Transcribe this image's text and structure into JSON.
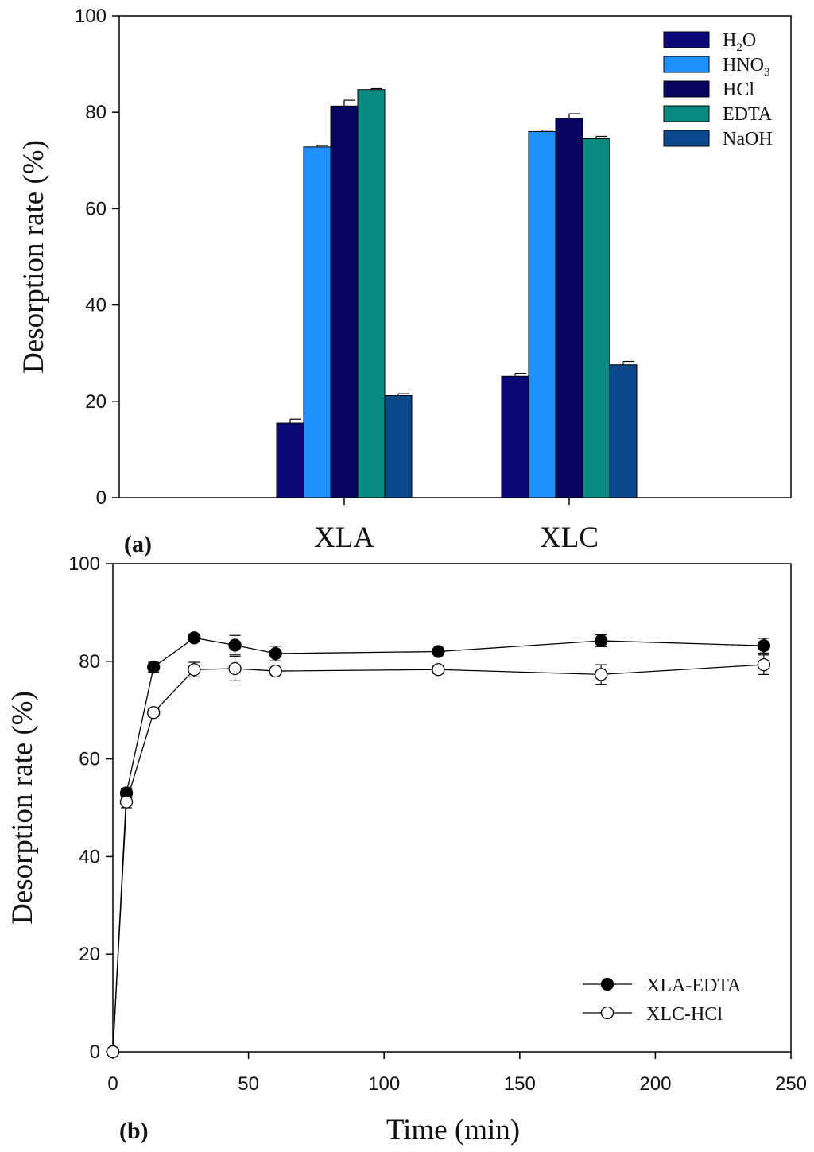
{
  "chart_data": [
    {
      "type": "bar",
      "panel_label": "(a)",
      "ylabel": "Desorption rate (%)",
      "xlabel": "",
      "ylim": [
        0,
        100
      ],
      "yticks": [
        "0",
        "20",
        "40",
        "60",
        "80",
        "100"
      ],
      "categories": [
        "XLA",
        "XLC"
      ],
      "series": [
        {
          "name": "H2O",
          "legend_main": "H",
          "legend_sub": "2",
          "legend_tail": "O",
          "color": "#0a0a7a",
          "values": [
            15.5,
            25.2
          ],
          "errors": [
            0.8,
            0.6
          ]
        },
        {
          "name": "HNO3",
          "legend_main": "HNO",
          "legend_sub": "3",
          "legend_tail": "",
          "color": "#1e90ff",
          "values": [
            72.8,
            76.0
          ],
          "errors": [
            0.3,
            0.3
          ]
        },
        {
          "name": "HCl",
          "legend_main": "HCl",
          "legend_sub": "",
          "legend_tail": "",
          "color": "#06065e",
          "values": [
            81.3,
            78.8
          ],
          "errors": [
            1.2,
            0.9
          ]
        },
        {
          "name": "EDTA",
          "legend_main": "EDTA",
          "legend_sub": "",
          "legend_tail": "",
          "color": "#0b8b80",
          "values": [
            84.7,
            74.5
          ],
          "errors": [
            0.2,
            0.5
          ]
        },
        {
          "name": "NaOH",
          "legend_main": "NaOH",
          "legend_sub": "",
          "legend_tail": "",
          "color": "#0a4a8c",
          "values": [
            21.2,
            27.6
          ],
          "errors": [
            0.4,
            0.7
          ]
        }
      ],
      "legend_position": "top-right"
    },
    {
      "type": "line",
      "panel_label": "(b)",
      "xlabel": "Time (min)",
      "ylabel": "Desorption rate (%)",
      "xlim": [
        0,
        250
      ],
      "ylim": [
        0,
        100
      ],
      "xticks": [
        "0",
        "50",
        "100",
        "150",
        "200",
        "250"
      ],
      "yticks": [
        "0",
        "20",
        "40",
        "60",
        "80",
        "100"
      ],
      "series": [
        {
          "name": "XLA-EDTA",
          "marker": "filled-circle",
          "x": [
            0,
            5,
            15,
            30,
            45,
            60,
            120,
            180,
            240
          ],
          "y": [
            0,
            53.0,
            78.8,
            84.8,
            83.3,
            81.6,
            82.0,
            84.2,
            83.2
          ],
          "errors": [
            0,
            1.0,
            1.0,
            0.8,
            2.0,
            1.5,
            0.5,
            1.2,
            1.5
          ]
        },
        {
          "name": "XLC-HCl",
          "marker": "open-circle",
          "x": [
            0,
            5,
            15,
            30,
            45,
            60,
            120,
            180,
            240
          ],
          "y": [
            0,
            51.2,
            69.5,
            78.3,
            78.5,
            78.0,
            78.3,
            77.3,
            79.3
          ],
          "errors": [
            0,
            1.2,
            0.8,
            1.5,
            2.5,
            0.8,
            0.8,
            2.0,
            2.0
          ]
        }
      ],
      "legend_position": "bottom-right"
    }
  ]
}
